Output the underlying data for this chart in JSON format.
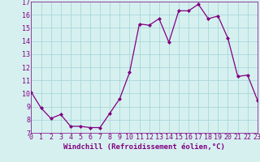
{
  "x": [
    0,
    1,
    2,
    3,
    4,
    5,
    6,
    7,
    8,
    9,
    10,
    11,
    12,
    13,
    14,
    15,
    16,
    17,
    18,
    19,
    20,
    21,
    22,
    23
  ],
  "y": [
    10.1,
    8.9,
    8.1,
    8.4,
    7.5,
    7.5,
    7.4,
    7.4,
    8.5,
    9.6,
    11.6,
    15.3,
    15.2,
    15.7,
    13.9,
    16.3,
    16.3,
    16.8,
    15.7,
    15.9,
    14.2,
    11.3,
    11.4,
    9.5
  ],
  "line_color": "#800080",
  "marker": "D",
  "marker_size": 2,
  "bg_color": "#d6f0f0",
  "grid_color": "#a8d8d8",
  "xlabel": "Windchill (Refroidissement éolien,°C)",
  "xlabel_fontsize": 6.5,
  "tick_fontsize": 6,
  "ylim": [
    7,
    17
  ],
  "xlim": [
    0,
    23
  ],
  "yticks": [
    7,
    8,
    9,
    10,
    11,
    12,
    13,
    14,
    15,
    16,
    17
  ],
  "xticks": [
    0,
    1,
    2,
    3,
    4,
    5,
    6,
    7,
    8,
    9,
    10,
    11,
    12,
    13,
    14,
    15,
    16,
    17,
    18,
    19,
    20,
    21,
    22,
    23
  ]
}
